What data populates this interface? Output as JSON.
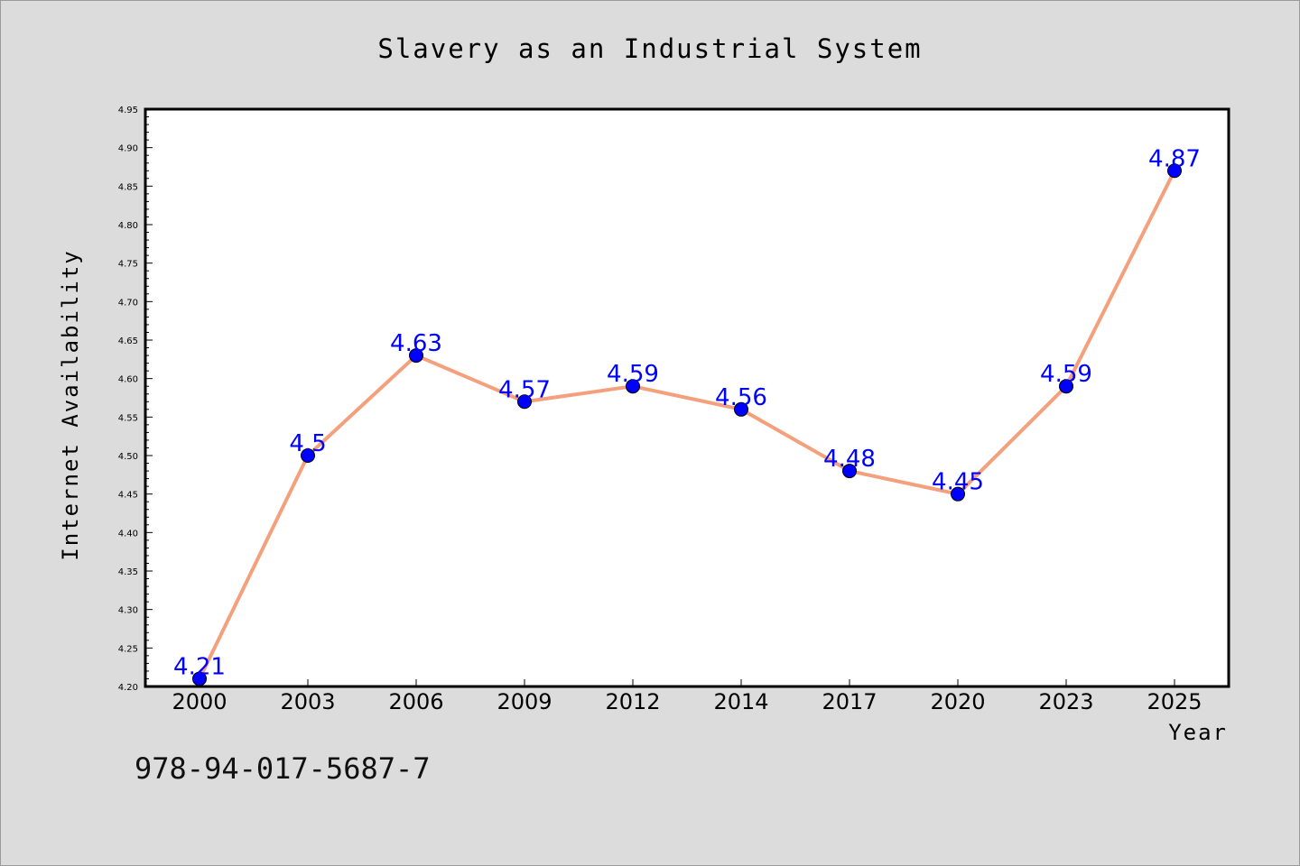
{
  "chart_data": {
    "type": "line",
    "title": "Slavery as an Industrial System",
    "xlabel": "Year",
    "ylabel": "Internet Availability",
    "categories": [
      "2000",
      "2003",
      "2006",
      "2009",
      "2012",
      "2014",
      "2017",
      "2020",
      "2023",
      "2025"
    ],
    "series": [
      {
        "values": [
          4.21,
          4.5,
          4.63,
          4.57,
          4.59,
          4.56,
          4.48,
          4.45,
          4.59,
          4.87
        ],
        "value_labels": [
          "4.21",
          "4.5",
          "4.63",
          "4.57",
          "4.59",
          "4.56",
          "4.48",
          "4.45",
          "4.59",
          "4.87"
        ],
        "line_color": "#f4a07c",
        "marker_color": "#0000ff"
      }
    ],
    "ylim": [
      4.2,
      4.95
    ],
    "yticks": [
      "4.20",
      "4.25",
      "4.30",
      "4.35",
      "4.40",
      "4.45",
      "4.50",
      "4.55",
      "4.60",
      "4.65",
      "4.70",
      "4.75",
      "4.80",
      "4.85",
      "4.90",
      "4.95"
    ],
    "grid": false,
    "data_label_color": "#0000ff",
    "background_color": "#dcdcdc",
    "plot_background_color": "#ffffff"
  },
  "footer": {
    "isbn": "978-94-017-5687-7"
  }
}
